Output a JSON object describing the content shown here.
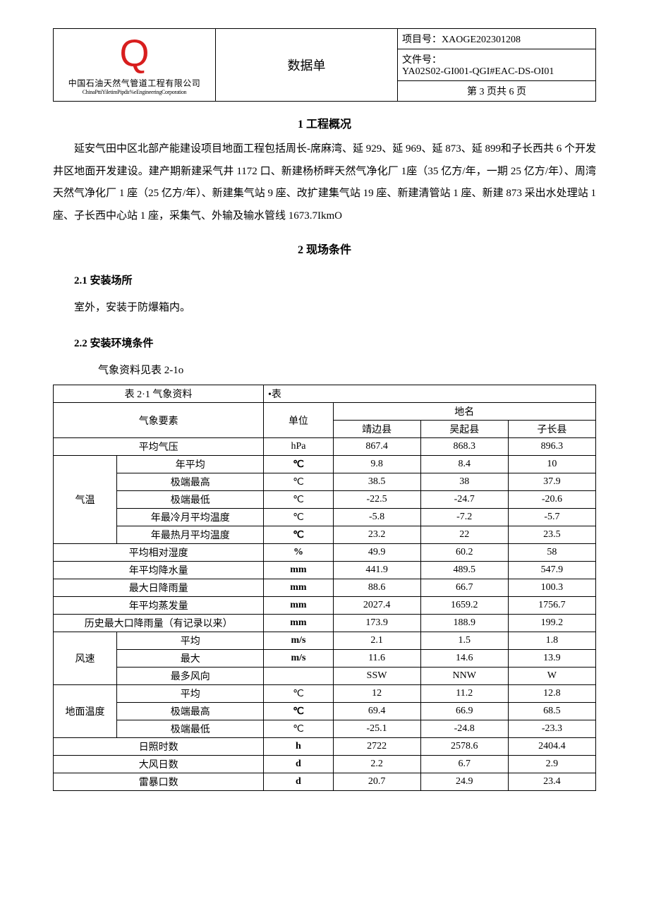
{
  "header": {
    "logo_letter": "Q",
    "logo_color": "#d81e1e",
    "company_zh": "中国石油天然气管道工程有限公司",
    "company_en": "ChinaPttiYiletimPipdiı%eEngineeringCorporation",
    "doc_type": "数据单",
    "project_label": "项目号：",
    "project_no": "XAOGE202301208",
    "file_label": "文件号：",
    "file_no": "YA02S02-GI001-QGI#EAC-DS-OI01",
    "page_info": "第 3 页共 6 页"
  },
  "sections": {
    "s1_title": "1 工程概况",
    "s1_body": "延安气田中区北部产能建设项目地面工程包括周长-席麻湾、延 929、延 969、延 873、延 899和子长西共 6 个开发井区地面开发建设。建产期新建采气井 1172 口、新建杨桥畔天然气净化厂 1座（35 亿方/年，一期 25 亿方/年）、周湾天然气净化厂 1 座（25 亿方/年）、新建集气站 9 座、改扩建集气站 19 座、新建清管站 1 座、新建 873 采出水处理站 1 座、子长西中心站 1 座，采集气、外输及输水管线 1673.7IkmO",
    "s2_title": "2 现场条件",
    "s2_1_title": "2.1  安装场所",
    "s2_1_body": "室外，安装于防爆箱内。",
    "s2_2_title": "2.2   安装环境条件",
    "s2_2_intro": "气象资料见表 2-1o"
  },
  "table": {
    "caption_left": "表 2·1 气象资料",
    "caption_right": "•表",
    "head": {
      "factor": "气象要素",
      "unit": "单位",
      "place": "地名",
      "places": [
        "靖边县",
        "吴起县",
        "子长县"
      ]
    },
    "groups": {
      "temp": "气温",
      "wind": "风速",
      "ground": "地面温度"
    },
    "rows": [
      {
        "g": "",
        "name": "平均气压",
        "unit": "hPa",
        "v": [
          "867.4",
          "868.3",
          "896.3"
        ]
      },
      {
        "g": "temp",
        "name": "年平均",
        "unit": "℃",
        "bold": true,
        "v": [
          "9.8",
          "8.4",
          "10"
        ]
      },
      {
        "g": "temp",
        "name": "极端最高",
        "unit": "℃",
        "v": [
          "38.5",
          "38",
          "37.9"
        ]
      },
      {
        "g": "temp",
        "name": "极端最低",
        "unit": "℃",
        "v": [
          "-22.5",
          "-24.7",
          "-20.6"
        ]
      },
      {
        "g": "temp",
        "name": "年最冷月平均温度",
        "unit": "℃",
        "v": [
          "-5.8",
          "-7.2",
          "-5.7"
        ]
      },
      {
        "g": "temp",
        "name": "年最热月平均温度",
        "unit": "℃",
        "bold": true,
        "v": [
          "23.2",
          "22",
          "23.5"
        ]
      },
      {
        "g": "",
        "name": "平均相对湿度",
        "unit": "%",
        "bold": true,
        "v": [
          "49.9",
          "60.2",
          "58"
        ]
      },
      {
        "g": "",
        "name": "年平均降水量",
        "unit": "mm",
        "bold": true,
        "v": [
          "441.9",
          "489.5",
          "547.9"
        ]
      },
      {
        "g": "",
        "name": "最大日降雨量",
        "unit": "mm",
        "bold": true,
        "v": [
          "88.6",
          "66.7",
          "100.3"
        ]
      },
      {
        "g": "",
        "name": "年平均蒸发量",
        "unit": "mm",
        "bold": true,
        "v": [
          "2027.4",
          "1659.2",
          "1756.7"
        ]
      },
      {
        "g": "",
        "name": "历史最大口降雨量（有记录以来）",
        "unit": "mm",
        "bold": true,
        "v": [
          "173.9",
          "188.9",
          "199.2"
        ]
      },
      {
        "g": "wind",
        "name": "平均",
        "unit": "m/s",
        "bold": true,
        "v": [
          "2.1",
          "1.5",
          "1.8"
        ]
      },
      {
        "g": "wind",
        "name": "最大",
        "unit": "m/s",
        "bold": true,
        "v": [
          "11.6",
          "14.6",
          "13.9"
        ]
      },
      {
        "g": "wind",
        "name": "最多风向",
        "unit": "",
        "v": [
          "SSW",
          "NNW",
          "W"
        ]
      },
      {
        "g": "ground",
        "name": "平均",
        "unit": "℃",
        "v": [
          "12",
          "11.2",
          "12.8"
        ]
      },
      {
        "g": "ground",
        "name": "极端最高",
        "unit": "℃",
        "bold": true,
        "v": [
          "69.4",
          "66.9",
          "68.5"
        ]
      },
      {
        "g": "ground",
        "name": "极端最低",
        "unit": "℃",
        "v": [
          "-25.1",
          "-24.8",
          "-23.3"
        ]
      },
      {
        "g": "",
        "name": "日照时数",
        "unit": "h",
        "bold": true,
        "v": [
          "2722",
          "2578.6",
          "2404.4"
        ]
      },
      {
        "g": "",
        "name": "大风日数",
        "unit": "d",
        "bold": true,
        "v": [
          "2.2",
          "6.7",
          "2.9"
        ]
      },
      {
        "g": "",
        "name": "雷暴口数",
        "unit": "d",
        "bold": true,
        "v": [
          "20.7",
          "24.9",
          "23.4"
        ]
      }
    ],
    "col_widths": [
      "90px",
      "208px",
      "98px",
      "124px",
      "124px",
      "124px"
    ]
  }
}
